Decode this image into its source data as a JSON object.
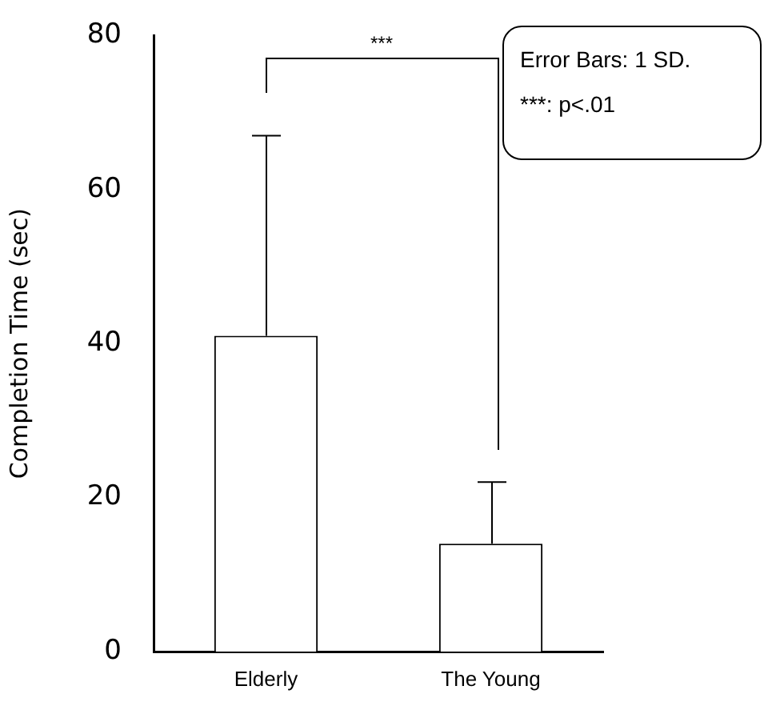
{
  "chart_data": {
    "type": "bar",
    "ylabel": "Completion Time (sec)",
    "categories": [
      "Elderly",
      "The Young"
    ],
    "values": [
      41,
      14
    ],
    "errors": [
      [
        41,
        67
      ],
      [
        14,
        22
      ]
    ],
    "colors": [
      "#ffffff",
      "#ffffff"
    ],
    "ylim": [
      0,
      80
    ],
    "yticks": [
      0,
      20,
      40,
      60,
      80
    ],
    "grid": false,
    "legend": false,
    "annotations": [
      "***",
      "Error Bars: 1 SD.",
      "***: p<.01"
    ]
  }
}
